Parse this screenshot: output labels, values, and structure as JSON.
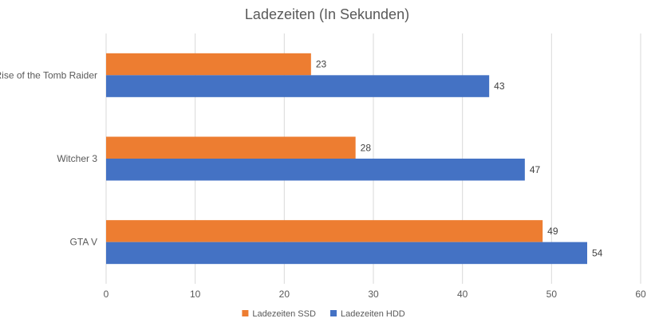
{
  "chart_data": {
    "type": "bar",
    "orientation": "horizontal",
    "title": "Ladezeiten (In Sekunden)",
    "xlabel": "",
    "ylabel": "",
    "categories": [
      "Rise of the Tomb Raider",
      "Witcher 3",
      "GTA V"
    ],
    "series": [
      {
        "name": "Ladezeiten SSD",
        "values": [
          23,
          28,
          49
        ],
        "color": "#ED7D31"
      },
      {
        "name": "Ladezeiten HDD",
        "values": [
          43,
          47,
          54
        ],
        "color": "#4472C4"
      }
    ],
    "xlim": [
      0,
      60
    ],
    "xticks": [
      "0",
      "10",
      "20",
      "30",
      "40",
      "50",
      "60"
    ],
    "grid": "vertical",
    "data_labels": true,
    "legend_position": "bottom"
  }
}
